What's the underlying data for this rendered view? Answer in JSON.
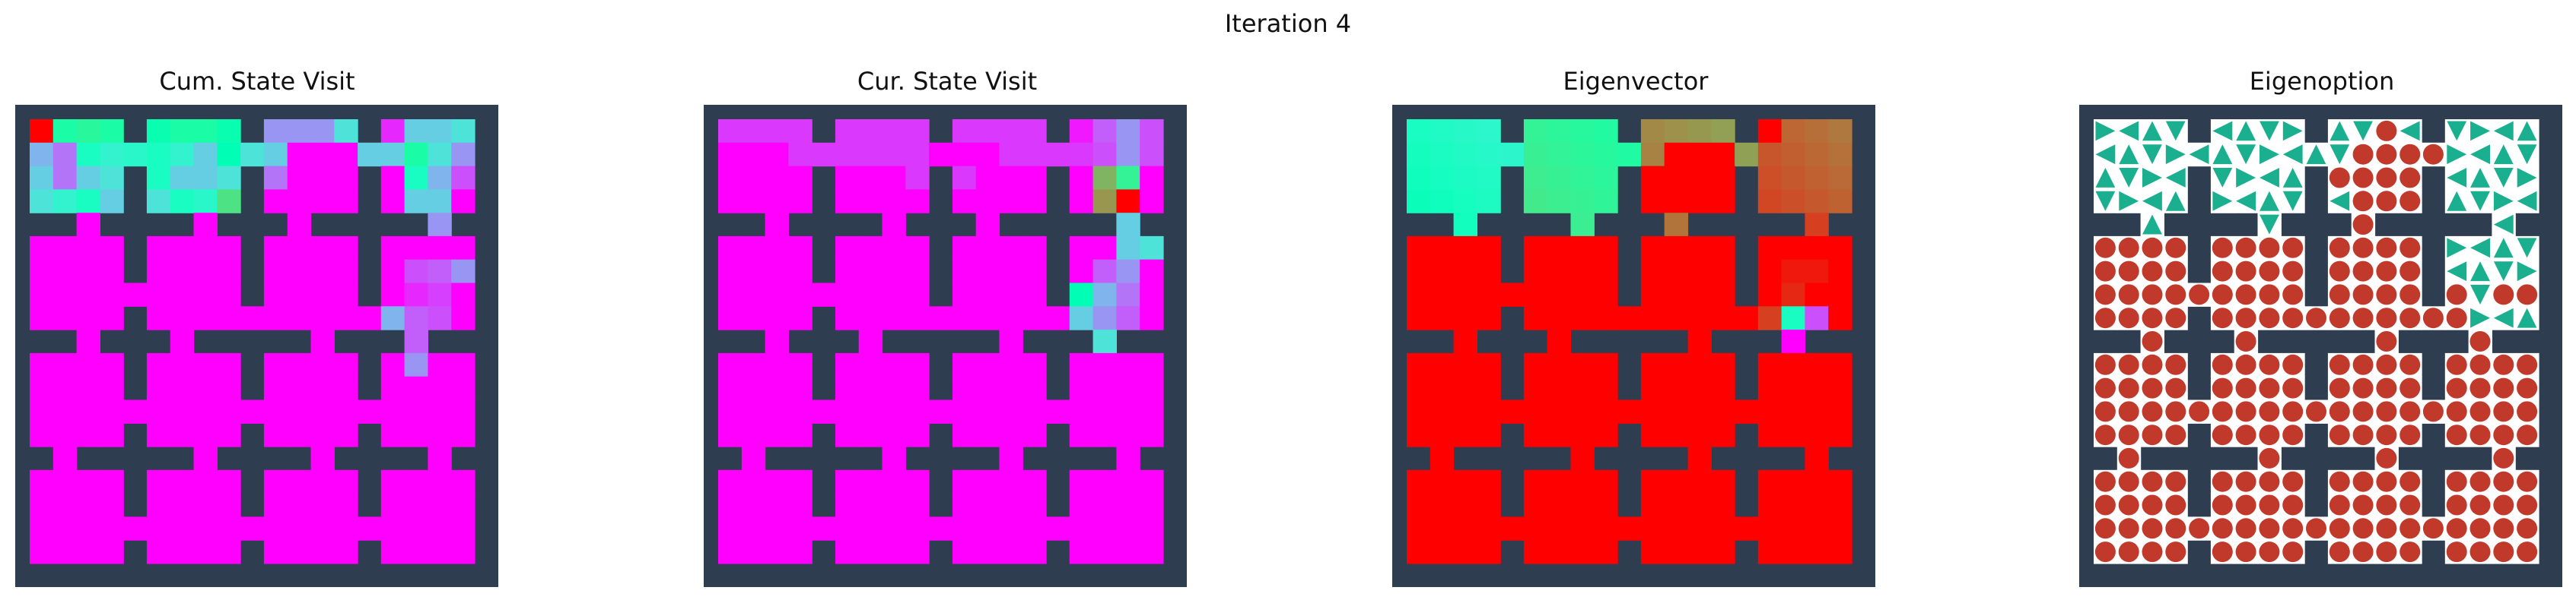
{
  "figure": {
    "title": "Iteration 4"
  },
  "colors": {
    "wall": "#2e3d4f",
    "floor_empty": "#ffffff",
    "arrow": "#1aaf8e",
    "stay": "#c0392b"
  },
  "rooms_grid": {
    "rows": 4,
    "cols": 4,
    "room_size": 5,
    "layout": "four-by-four rooms with doorways"
  },
  "chart_data": [
    {
      "type": "heatmap",
      "title": "Cum. State Visit",
      "colormap": "rainbow",
      "background_value": 0.0,
      "hotspots": [
        {
          "cell": [
            0,
            0
          ],
          "value": 1.0
        },
        {
          "cell": [
            0,
            1
          ],
          "value": 0.55
        },
        {
          "cell": [
            0,
            2
          ],
          "value": 0.58
        },
        {
          "cell": [
            0,
            3
          ],
          "value": 0.55
        },
        {
          "cell": [
            0,
            4
          ],
          "value": 0.5
        },
        {
          "cell": [
            0,
            5
          ],
          "value": 0.52
        },
        {
          "cell": [
            0,
            6
          ],
          "value": 0.55
        },
        {
          "cell": [
            0,
            7
          ],
          "value": 0.55
        },
        {
          "cell": [
            0,
            8
          ],
          "value": 0.52
        },
        {
          "cell": [
            0,
            10
          ],
          "value": 0.2
        },
        {
          "cell": [
            0,
            11
          ],
          "value": 0.2
        },
        {
          "cell": [
            0,
            12
          ],
          "value": 0.2
        },
        {
          "cell": [
            0,
            13
          ],
          "value": 0.35
        },
        {
          "cell": [
            0,
            15
          ],
          "value": 0.05
        },
        {
          "cell": [
            0,
            16
          ],
          "value": 0.3
        },
        {
          "cell": [
            0,
            17
          ],
          "value": 0.3
        },
        {
          "cell": [
            0,
            18
          ],
          "value": 0.35
        },
        {
          "cell": [
            1,
            0
          ],
          "value": 0.25
        },
        {
          "cell": [
            1,
            1
          ],
          "value": 0.15
        },
        {
          "cell": [
            1,
            2
          ],
          "value": 0.45
        },
        {
          "cell": [
            1,
            3
          ],
          "value": 0.4
        },
        {
          "cell": [
            1,
            4
          ],
          "value": 0.42
        },
        {
          "cell": [
            1,
            5
          ],
          "value": 0.45
        },
        {
          "cell": [
            1,
            6
          ],
          "value": 0.4
        },
        {
          "cell": [
            1,
            7
          ],
          "value": 0.3
        },
        {
          "cell": [
            1,
            8
          ],
          "value": 0.5
        },
        {
          "cell": [
            1,
            9
          ],
          "value": 0.35
        },
        {
          "cell": [
            1,
            10
          ],
          "value": 0.3
        },
        {
          "cell": [
            1,
            14
          ],
          "value": 0.3
        },
        {
          "cell": [
            1,
            15
          ],
          "value": 0.3
        },
        {
          "cell": [
            1,
            16
          ],
          "value": 0.55
        },
        {
          "cell": [
            1,
            17
          ],
          "value": 0.35
        },
        {
          "cell": [
            1,
            18
          ],
          "value": 0.2
        },
        {
          "cell": [
            2,
            0
          ],
          "value": 0.3
        },
        {
          "cell": [
            2,
            1
          ],
          "value": 0.15
        },
        {
          "cell": [
            2,
            2
          ],
          "value": 0.3
        },
        {
          "cell": [
            2,
            3
          ],
          "value": 0.35
        },
        {
          "cell": [
            2,
            5
          ],
          "value": 0.45
        },
        {
          "cell": [
            2,
            6
          ],
          "value": 0.3
        },
        {
          "cell": [
            2,
            7
          ],
          "value": 0.3
        },
        {
          "cell": [
            2,
            8
          ],
          "value": 0.35
        },
        {
          "cell": [
            2,
            10
          ],
          "value": 0.15
        },
        {
          "cell": [
            2,
            16
          ],
          "value": 0.45
        },
        {
          "cell": [
            2,
            17
          ],
          "value": 0.25
        },
        {
          "cell": [
            2,
            18
          ],
          "value": 0.1
        },
        {
          "cell": [
            3,
            0
          ],
          "value": 0.35
        },
        {
          "cell": [
            3,
            1
          ],
          "value": 0.4
        },
        {
          "cell": [
            3,
            2
          ],
          "value": 0.45
        },
        {
          "cell": [
            3,
            3
          ],
          "value": 0.3
        },
        {
          "cell": [
            3,
            5
          ],
          "value": 0.35
        },
        {
          "cell": [
            3,
            6
          ],
          "value": 0.45
        },
        {
          "cell": [
            3,
            7
          ],
          "value": 0.42
        },
        {
          "cell": [
            3,
            8
          ],
          "value": 0.65
        },
        {
          "cell": [
            3,
            16
          ],
          "value": 0.3
        },
        {
          "cell": [
            3,
            17
          ],
          "value": 0.3
        },
        {
          "cell": [
            4,
            17
          ],
          "value": 0.2
        },
        {
          "cell": [
            6,
            16
          ],
          "value": 0.1
        },
        {
          "cell": [
            6,
            17
          ],
          "value": 0.12
        },
        {
          "cell": [
            6,
            18
          ],
          "value": 0.2
        },
        {
          "cell": [
            7,
            16
          ],
          "value": 0.05
        },
        {
          "cell": [
            7,
            17
          ],
          "value": 0.08
        },
        {
          "cell": [
            8,
            15
          ],
          "value": 0.25
        },
        {
          "cell": [
            8,
            16
          ],
          "value": 0.12
        },
        {
          "cell": [
            8,
            17
          ],
          "value": 0.1
        },
        {
          "cell": [
            9,
            15
          ],
          "value": 0.28
        },
        {
          "cell": [
            9,
            16
          ],
          "value": 0.12
        },
        {
          "cell": [
            9,
            17
          ],
          "value": 0.08
        },
        {
          "cell": [
            10,
            16
          ],
          "value": 0.2
        }
      ]
    },
    {
      "type": "heatmap",
      "title": "Cur. State Visit",
      "colormap": "rainbow",
      "background_value": 0.0,
      "hotspots": [
        {
          "cell": [
            0,
            0
          ],
          "value": 0.07
        },
        {
          "cell": [
            0,
            1
          ],
          "value": 0.07
        },
        {
          "cell": [
            0,
            2
          ],
          "value": 0.07
        },
        {
          "cell": [
            0,
            3
          ],
          "value": 0.07
        },
        {
          "cell": [
            0,
            5
          ],
          "value": 0.07
        },
        {
          "cell": [
            0,
            6
          ],
          "value": 0.07
        },
        {
          "cell": [
            0,
            7
          ],
          "value": 0.07
        },
        {
          "cell": [
            0,
            8
          ],
          "value": 0.07
        },
        {
          "cell": [
            0,
            10
          ],
          "value": 0.07
        },
        {
          "cell": [
            0,
            11
          ],
          "value": 0.07
        },
        {
          "cell": [
            0,
            12
          ],
          "value": 0.07
        },
        {
          "cell": [
            0,
            13
          ],
          "value": 0.07
        },
        {
          "cell": [
            0,
            15
          ],
          "value": 0.03
        },
        {
          "cell": [
            0,
            16
          ],
          "value": 0.12
        },
        {
          "cell": [
            0,
            17
          ],
          "value": 0.2
        },
        {
          "cell": [
            0,
            18
          ],
          "value": 0.1
        },
        {
          "cell": [
            1,
            3
          ],
          "value": 0.07
        },
        {
          "cell": [
            1,
            4
          ],
          "value": 0.07
        },
        {
          "cell": [
            1,
            5
          ],
          "value": 0.07
        },
        {
          "cell": [
            1,
            6
          ],
          "value": 0.07
        },
        {
          "cell": [
            1,
            7
          ],
          "value": 0.07
        },
        {
          "cell": [
            1,
            8
          ],
          "value": 0.07
        },
        {
          "cell": [
            1,
            12
          ],
          "value": 0.07
        },
        {
          "cell": [
            1,
            13
          ],
          "value": 0.07
        },
        {
          "cell": [
            1,
            14
          ],
          "value": 0.07
        },
        {
          "cell": [
            1,
            15
          ],
          "value": 0.07
        },
        {
          "cell": [
            1,
            16
          ],
          "value": 0.1
        },
        {
          "cell": [
            1,
            17
          ],
          "value": 0.2
        },
        {
          "cell": [
            1,
            18
          ],
          "value": 0.1
        },
        {
          "cell": [
            2,
            8
          ],
          "value": 0.07
        },
        {
          "cell": [
            2,
            9
          ],
          "value": 0.07
        },
        {
          "cell": [
            2,
            10
          ],
          "value": 0.07
        },
        {
          "cell": [
            2,
            16
          ],
          "value": 0.75
        },
        {
          "cell": [
            2,
            17
          ],
          "value": 0.6
        },
        {
          "cell": [
            3,
            16
          ],
          "value": 0.8
        },
        {
          "cell": [
            3,
            17
          ],
          "value": 1.0
        },
        {
          "cell": [
            4,
            17
          ],
          "value": 0.3
        },
        {
          "cell": [
            5,
            17
          ],
          "value": 0.3
        },
        {
          "cell": [
            5,
            18
          ],
          "value": 0.35
        },
        {
          "cell": [
            6,
            16
          ],
          "value": 0.12
        },
        {
          "cell": [
            6,
            17
          ],
          "value": 0.2
        },
        {
          "cell": [
            7,
            15
          ],
          "value": 0.5
        },
        {
          "cell": [
            7,
            16
          ],
          "value": 0.25
        },
        {
          "cell": [
            7,
            17
          ],
          "value": 0.15
        },
        {
          "cell": [
            8,
            15
          ],
          "value": 0.3
        },
        {
          "cell": [
            8,
            16
          ],
          "value": 0.2
        },
        {
          "cell": [
            8,
            17
          ],
          "value": 0.12
        },
        {
          "cell": [
            9,
            16
          ],
          "value": 0.35
        }
      ]
    },
    {
      "type": "heatmap",
      "title": "Eigenvector",
      "colormap": "rainbow",
      "background_value": 1.0,
      "room_values": [
        [
          0.45,
          0.6,
          0.82,
          0.88
        ],
        [
          1.0,
          1.0,
          1.0,
          1.0
        ],
        [
          1.0,
          1.0,
          1.0,
          1.0
        ],
        [
          1.0,
          1.0,
          1.0,
          1.0
        ]
      ],
      "hotspots": [
        {
          "cell": [
            0,
            15
          ],
          "value": 1.0
        },
        {
          "cell": [
            1,
            11
          ],
          "value": 1.0
        },
        {
          "cell": [
            1,
            12
          ],
          "value": 1.0
        },
        {
          "cell": [
            1,
            13
          ],
          "value": 1.0
        },
        {
          "cell": [
            2,
            10
          ],
          "value": 1.0
        },
        {
          "cell": [
            2,
            11
          ],
          "value": 1.0
        },
        {
          "cell": [
            2,
            12
          ],
          "value": 1.0
        },
        {
          "cell": [
            2,
            13
          ],
          "value": 1.0
        },
        {
          "cell": [
            3,
            10
          ],
          "value": 1.0
        },
        {
          "cell": [
            3,
            11
          ],
          "value": 1.0
        },
        {
          "cell": [
            3,
            12
          ],
          "value": 1.0
        },
        {
          "cell": [
            3,
            13
          ],
          "value": 1.0
        },
        {
          "cell": [
            4,
            17
          ],
          "value": 0.92
        },
        {
          "cell": [
            6,
            16
          ],
          "value": 0.97
        },
        {
          "cell": [
            6,
            17
          ],
          "value": 0.97
        },
        {
          "cell": [
            7,
            16
          ],
          "value": 0.95
        },
        {
          "cell": [
            8,
            15
          ],
          "value": 0.92
        },
        {
          "cell": [
            8,
            16
          ],
          "value": 0.45
        },
        {
          "cell": [
            8,
            17
          ],
          "value": 0.1
        },
        {
          "cell": [
            9,
            16
          ],
          "value": 0.0
        }
      ]
    },
    {
      "type": "policy_map",
      "title": "Eigenoption",
      "marks": "arrows (teal) and terminations (red dots)"
    }
  ]
}
